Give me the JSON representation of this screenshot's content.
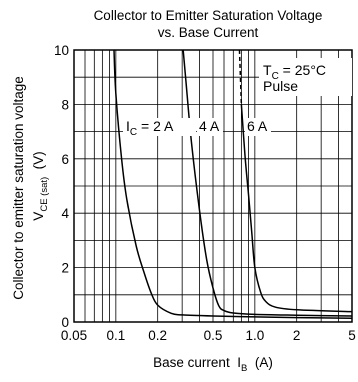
{
  "chart_data": {
    "type": "line",
    "title": "Collector to Emitter Saturation Voltage",
    "subtitle": "vs. Base Current",
    "xlabel": "Base current",
    "xlabel_symbol": "I",
    "xlabel_sub": "B",
    "xlabel_unit": "(A)",
    "ylabel_line1": "Collector to emitter saturation voltage",
    "ylabel_symbol": "V",
    "ylabel_sub": "CE (sat)",
    "ylabel_unit": "(V)",
    "x_scale": "log",
    "xlim": [
      0.05,
      5
    ],
    "ylim": [
      0,
      10
    ],
    "grid": true,
    "x_ticks": [
      0.05,
      0.1,
      0.2,
      0.5,
      1.0,
      2,
      5
    ],
    "x_tick_labels": [
      "0.05",
      "0.1",
      "0.2",
      "0.5",
      "1.0",
      "2",
      "5"
    ],
    "y_ticks": [
      0,
      2,
      4,
      6,
      8,
      10
    ],
    "y_tick_labels": [
      "0",
      "2",
      "4",
      "6",
      "8",
      "10"
    ],
    "annotation": {
      "symbol": "T",
      "sub": "C",
      "value": " = 25°C",
      "line2": "Pulse"
    },
    "series": [
      {
        "name": "I",
        "name_sub": "C",
        "name_suffix": " = 2 A",
        "points": [
          [
            0.097,
            10
          ],
          [
            0.1,
            8.4
          ],
          [
            0.11,
            6.0
          ],
          [
            0.12,
            4.5
          ],
          [
            0.14,
            2.8
          ],
          [
            0.16,
            1.8
          ],
          [
            0.18,
            1.05
          ],
          [
            0.2,
            0.62
          ],
          [
            0.25,
            0.32
          ],
          [
            0.3,
            0.26
          ],
          [
            0.5,
            0.22
          ],
          [
            1.0,
            0.19
          ],
          [
            2,
            0.16
          ],
          [
            5,
            0.14
          ]
        ]
      },
      {
        "name": "4 A",
        "points": [
          [
            0.305,
            10
          ],
          [
            0.32,
            8.8
          ],
          [
            0.35,
            6.6
          ],
          [
            0.4,
            4.1
          ],
          [
            0.45,
            2.3
          ],
          [
            0.5,
            1.25
          ],
          [
            0.55,
            0.6
          ],
          [
            0.6,
            0.42
          ],
          [
            0.7,
            0.33
          ],
          [
            1.0,
            0.28
          ],
          [
            2,
            0.25
          ],
          [
            5,
            0.22
          ]
        ]
      },
      {
        "name": "6 A",
        "dashed_upper": true,
        "points": [
          [
            0.775,
            10
          ],
          [
            0.8,
            8.0
          ],
          [
            0.85,
            6.1
          ],
          [
            0.9,
            4.7
          ],
          [
            0.95,
            3.3
          ],
          [
            1.0,
            2.0
          ],
          [
            1.1,
            1.1
          ],
          [
            1.2,
            0.75
          ],
          [
            1.4,
            0.55
          ],
          [
            2,
            0.45
          ],
          [
            5,
            0.38
          ]
        ]
      }
    ]
  }
}
